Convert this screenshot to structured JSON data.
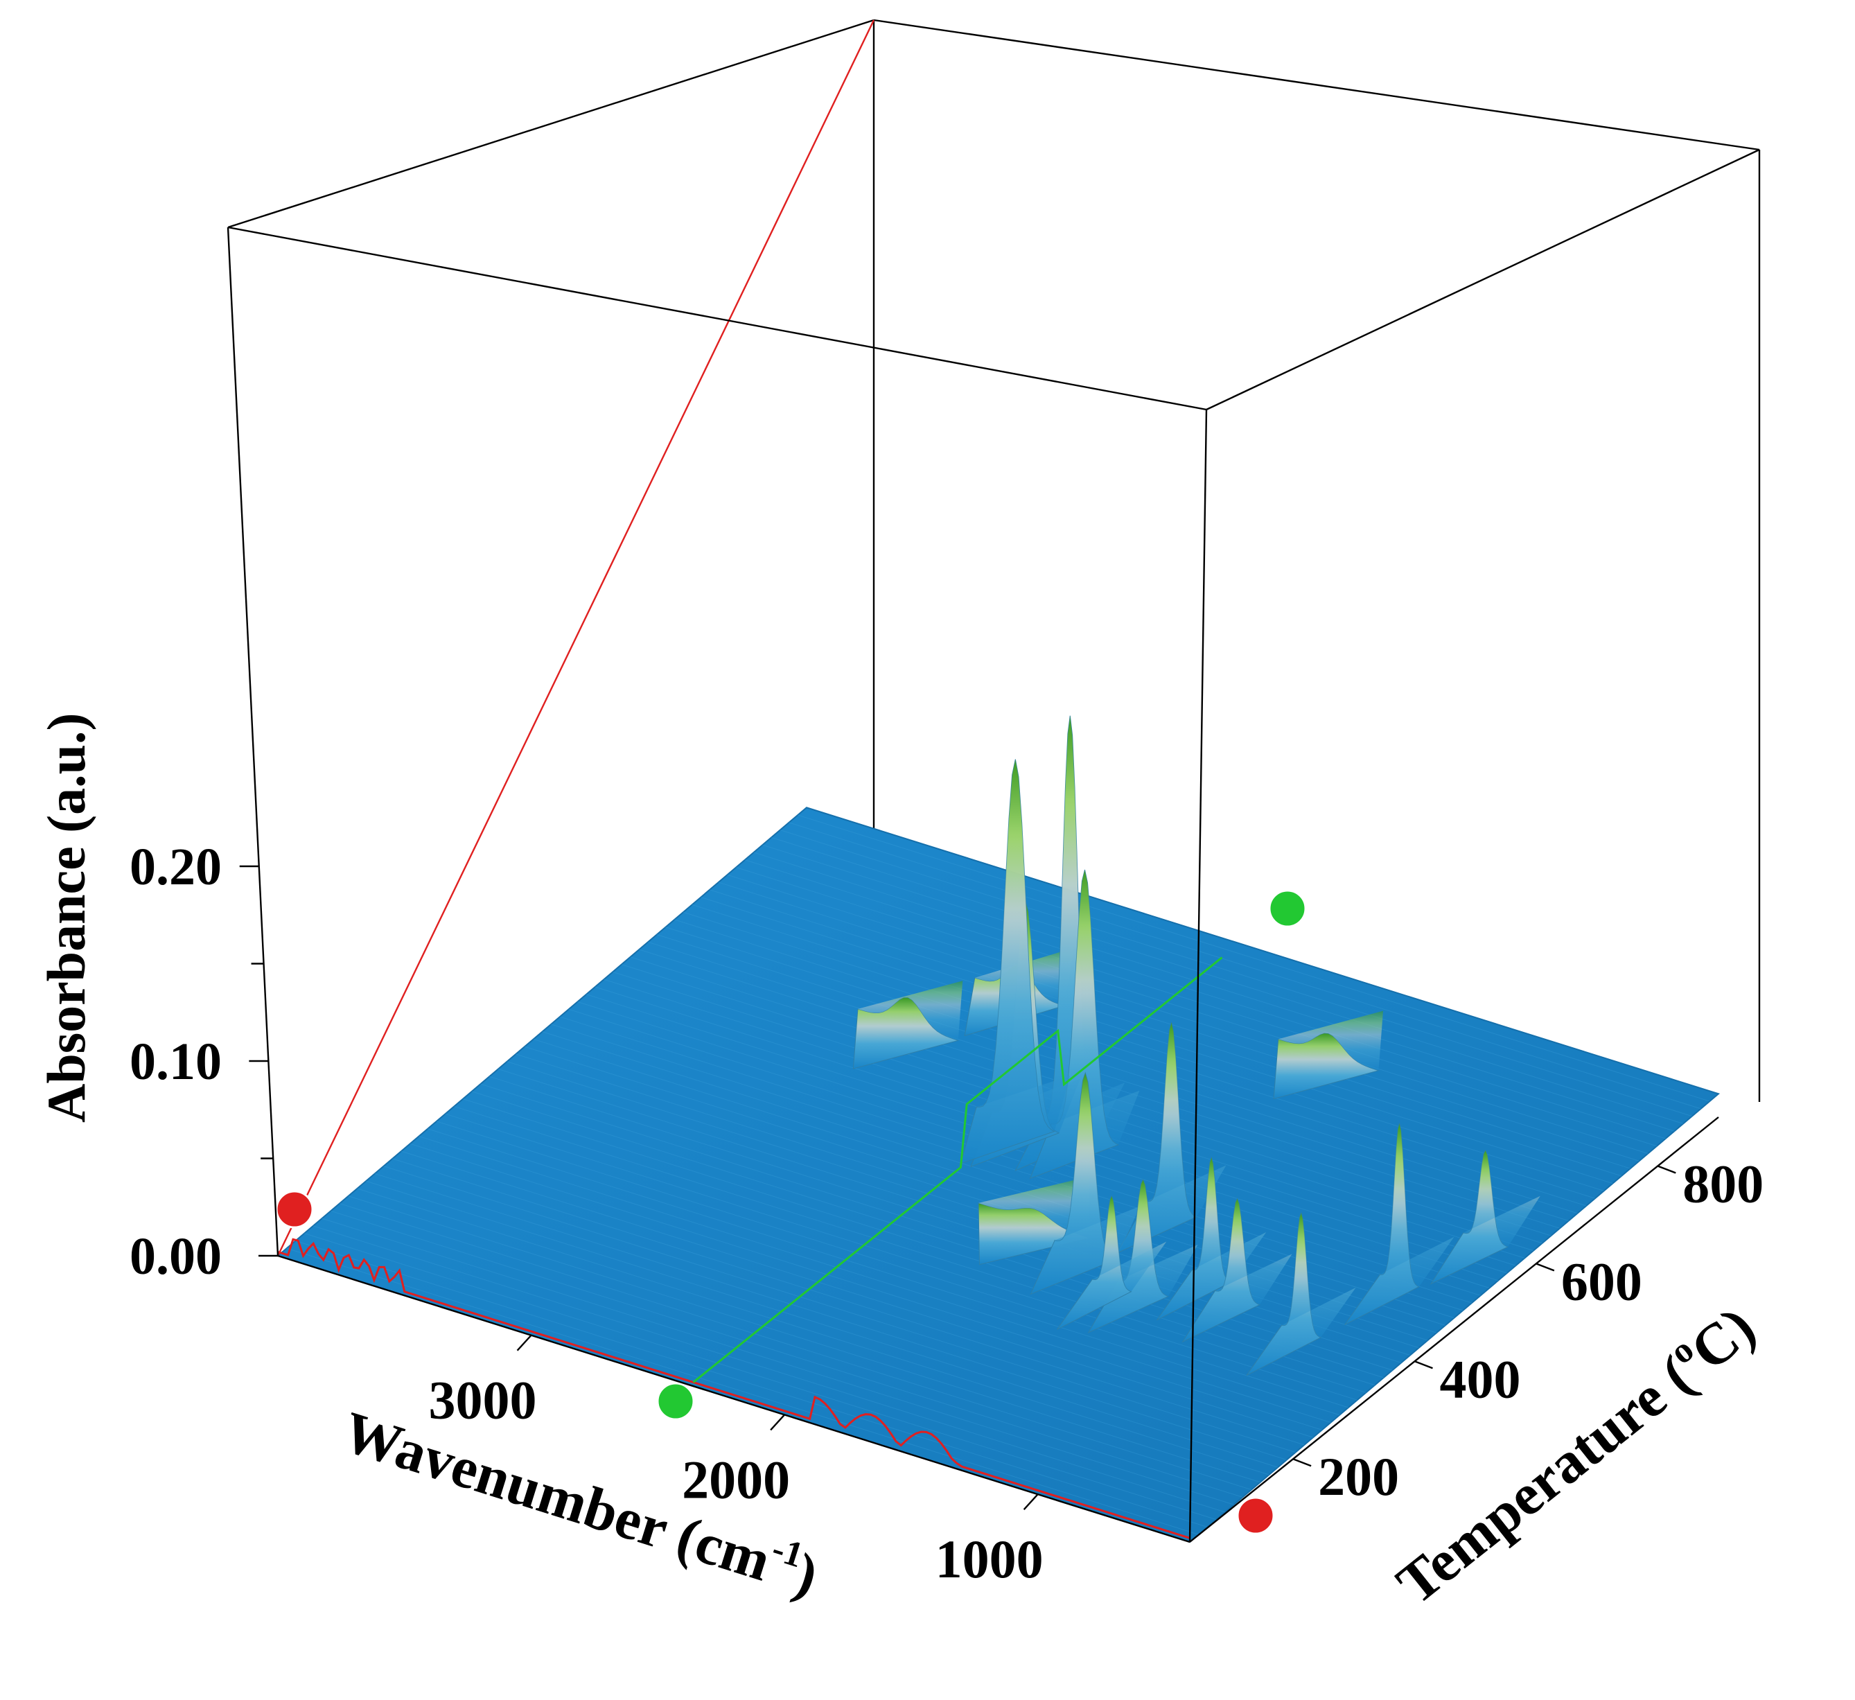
{
  "chart_data": {
    "type": "surface3d",
    "x_axis": {
      "label": "Wavenumber (cm",
      "label_sup": "-1",
      "label_end": ")",
      "range": [
        4000,
        400
      ],
      "ticks": [
        "3000",
        "2000",
        "1000"
      ],
      "tick_values": [
        3000,
        2000,
        1000
      ]
    },
    "y_axis": {
      "label": "Temperature (",
      "label_sup": "o",
      "label_end": "C)",
      "range": [
        30,
        900
      ],
      "ticks": [
        "200",
        "400",
        "600",
        "800"
      ],
      "tick_values": [
        200,
        400,
        600,
        800
      ]
    },
    "z_axis": {
      "label": "Absorbance (a.u.)",
      "range": [
        0,
        0.25
      ],
      "ticks": [
        "0.00",
        "0.10",
        "0.20"
      ],
      "tick_values": [
        0,
        0.1,
        0.2
      ]
    },
    "surface_colormap": [
      "#1a86c9",
      "#36a8d8",
      "#9ec7d6",
      "#c9d8b0",
      "#8ed85a",
      "#2f8a18"
    ],
    "cut_markers": {
      "temperature_cut_color": "#e02020",
      "wavenumber_cut_color": "#22c832"
    },
    "peaks": [
      {
        "wavenumber": 2360,
        "temperature": 560,
        "absorbance": 0.189,
        "width": 70
      },
      {
        "wavenumber": 2320,
        "temperature": 560,
        "absorbance": 0.118,
        "width": 60
      },
      {
        "wavenumber": 2180,
        "temperature": 575,
        "absorbance": 0.215,
        "width": 50
      },
      {
        "wavenumber": 2110,
        "temperature": 570,
        "absorbance": 0.14,
        "width": 60
      },
      {
        "wavenumber": 1700,
        "temperature": 400,
        "absorbance": 0.095,
        "width": 55
      },
      {
        "wavenumber": 1600,
        "temperature": 500,
        "absorbance": 0.1,
        "width": 45
      },
      {
        "wavenumber": 1500,
        "temperature": 360,
        "absorbance": 0.05,
        "width": 35
      },
      {
        "wavenumber": 1400,
        "temperature": 370,
        "absorbance": 0.06,
        "width": 45
      },
      {
        "wavenumber": 1250,
        "temperature": 420,
        "absorbance": 0.065,
        "width": 35
      },
      {
        "wavenumber": 1100,
        "temperature": 400,
        "absorbance": 0.055,
        "width": 40
      },
      {
        "wavenumber": 800,
        "temperature": 380,
        "absorbance": 0.065,
        "width": 35
      },
      {
        "wavenumber": 700,
        "temperature": 500,
        "absorbance": 0.085,
        "width": 35
      },
      {
        "wavenumber": 600,
        "temperature": 600,
        "absorbance": 0.05,
        "width": 40
      },
      {
        "wavenumber": 3000,
        "temperature": 650,
        "absorbance": 0.018,
        "width": 90
      },
      {
        "wavenumber": 2800,
        "temperature": 750,
        "absorbance": 0.018,
        "width": 80
      },
      {
        "wavenumber": 1950,
        "temperature": 420,
        "absorbance": 0.01,
        "width": 100
      },
      {
        "wavenumber": 1700,
        "temperature": 800,
        "absorbance": 0.015,
        "width": 90
      }
    ]
  }
}
